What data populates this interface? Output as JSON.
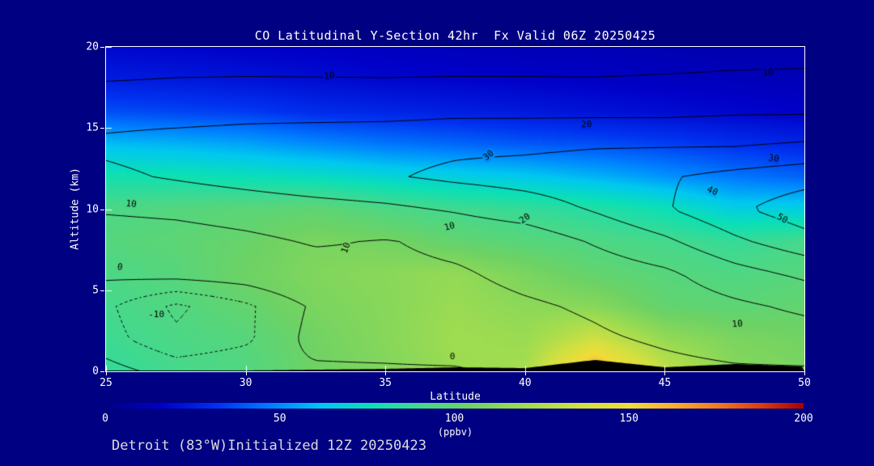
{
  "title": "CO Latitudinal Y-Section 42hr  Fx Valid 06Z 20250425",
  "footer": "Detroit (83°W)Initialized 12Z 20250423",
  "colors": {
    "background": "#000082",
    "axis": "#FFFFFF",
    "contour": "#000000",
    "title_text": "#FFFFFF",
    "footer_text": "#DCDCDC",
    "terrain": "#000000"
  },
  "chart_data": {
    "type": "heatmap",
    "title": "CO Latitudinal Y-Section 42hr  Fx Valid 06Z 20250425",
    "xlabel": "Latitude",
    "ylabel": "Altitude (km)",
    "xlim": [
      25,
      50
    ],
    "ylim": [
      0,
      20
    ],
    "x_ticks": [
      25,
      30,
      35,
      40,
      45,
      50
    ],
    "y_ticks": [
      0,
      5,
      10,
      15,
      20
    ],
    "grid_lats": [
      25,
      27.5,
      30,
      32.5,
      35,
      37.5,
      40,
      42.5,
      45,
      47.5,
      50
    ],
    "grid_alts": [
      0,
      2,
      4,
      6,
      8,
      10,
      12,
      14,
      16,
      18,
      20
    ],
    "fill_field": {
      "name": "CO",
      "units": "ppbv",
      "values": [
        [
          85,
          90,
          94,
          104,
          110,
          118,
          122,
          168,
          132,
          112,
          108
        ],
        [
          88,
          92,
          96,
          105,
          112,
          120,
          118,
          135,
          116,
          108,
          105
        ],
        [
          90,
          94,
          100,
          108,
          112,
          118,
          114,
          112,
          100,
          98,
          100
        ],
        [
          92,
          96,
          104,
          110,
          113,
          116,
          108,
          100,
          96,
          93,
          96
        ],
        [
          95,
          98,
          102,
          108,
          106,
          100,
          96,
          93,
          90,
          86,
          90
        ],
        [
          92,
          95,
          97,
          99,
          93,
          89,
          86,
          82,
          76,
          66,
          66
        ],
        [
          78,
          77,
          75,
          73,
          69,
          66,
          63,
          58,
          52,
          46,
          42
        ],
        [
          60,
          58,
          55,
          50,
          46,
          43,
          40,
          38,
          35,
          31,
          28
        ],
        [
          38,
          36,
          34,
          30,
          28,
          26,
          24,
          22,
          20,
          18,
          16
        ],
        [
          25,
          24,
          22,
          20,
          18,
          17,
          16,
          15,
          14,
          13,
          12
        ],
        [
          18,
          17,
          16,
          15,
          14,
          13,
          12,
          12,
          11,
          10,
          10
        ]
      ]
    },
    "contour_field": {
      "levels": [
        -10,
        -5,
        0,
        10,
        20,
        30,
        40,
        50
      ],
      "negative_style": "dotted",
      "values": [
        [
          2,
          -2,
          -1,
          -1,
          -1,
          -1,
          2,
          6,
          8,
          9,
          9
        ],
        [
          -3,
          -9,
          -6,
          2,
          3,
          5,
          7,
          9,
          11,
          13,
          15
        ],
        [
          -4,
          -11,
          -6,
          1,
          4,
          7,
          9,
          11,
          14,
          18,
          22
        ],
        [
          1,
          2,
          3,
          6,
          8,
          9,
          12,
          14,
          18,
          26,
          32
        ],
        [
          5,
          6,
          8,
          10.8,
          9.5,
          12,
          14,
          21,
          28,
          38,
          46
        ],
        [
          11,
          12,
          14,
          16,
          18,
          21,
          25,
          31,
          39,
          48,
          56
        ],
        [
          18,
          21,
          24,
          27,
          29,
          32,
          34,
          36,
          39,
          43,
          46
        ],
        [
          22,
          24,
          25,
          26,
          27,
          28,
          28,
          29,
          29,
          29,
          31
        ],
        [
          16,
          16,
          17,
          17,
          17,
          18,
          18,
          18,
          18,
          19,
          19
        ],
        [
          9.6,
          10.2,
          10.4,
          10.3,
          10.2,
          10.4,
          10.3,
          10.2,
          10.6,
          10.8,
          11
        ],
        [
          5,
          6,
          6,
          6,
          6,
          6,
          7,
          7,
          7,
          8,
          8
        ]
      ]
    },
    "terrain_km": [
      0.05,
      0.05,
      0.05,
      0.1,
      0.15,
      0.25,
      0.2,
      0.7,
      0.25,
      0.45,
      0.3
    ],
    "contour_labels": [
      {
        "lat": 33.0,
        "alt": 18.2,
        "text": "10",
        "rot": -6
      },
      {
        "lat": 48.7,
        "alt": 18.4,
        "text": "10",
        "rot": -4
      },
      {
        "lat": 42.2,
        "alt": 15.2,
        "text": "20",
        "rot": -3
      },
      {
        "lat": 38.7,
        "alt": 13.3,
        "text": "30",
        "rot": -40
      },
      {
        "lat": 48.9,
        "alt": 13.1,
        "text": "30",
        "rot": 8
      },
      {
        "lat": 25.9,
        "alt": 10.3,
        "text": "10",
        "rot": 6
      },
      {
        "lat": 33.6,
        "alt": 7.6,
        "text": "10",
        "rot": -70
      },
      {
        "lat": 37.3,
        "alt": 8.9,
        "text": "10",
        "rot": -15
      },
      {
        "lat": 40.0,
        "alt": 9.4,
        "text": "20",
        "rot": -35
      },
      {
        "lat": 46.7,
        "alt": 11.1,
        "text": "40",
        "rot": 25
      },
      {
        "lat": 49.2,
        "alt": 9.4,
        "text": "50",
        "rot": 30
      },
      {
        "lat": 25.5,
        "alt": 6.4,
        "text": "0",
        "rot": 8
      },
      {
        "lat": 26.8,
        "alt": 3.5,
        "text": "-10",
        "rot": 0
      },
      {
        "lat": 37.4,
        "alt": 0.9,
        "text": "0",
        "rot": 0
      },
      {
        "lat": 47.6,
        "alt": 2.9,
        "text": "10",
        "rot": -5
      }
    ],
    "colorbar": {
      "min": 0,
      "max": 200,
      "ticks": [
        0,
        50,
        100,
        150,
        200
      ],
      "label": "(ppbv)"
    },
    "colormap": [
      [
        0.0,
        "#000082"
      ],
      [
        0.08,
        "#0000C8"
      ],
      [
        0.16,
        "#0032F0"
      ],
      [
        0.24,
        "#0082FF"
      ],
      [
        0.31,
        "#00C8F0"
      ],
      [
        0.38,
        "#0CE0B4"
      ],
      [
        0.45,
        "#46D88C"
      ],
      [
        0.52,
        "#6ED264"
      ],
      [
        0.6,
        "#A0DC50"
      ],
      [
        0.68,
        "#D2E040"
      ],
      [
        0.75,
        "#F0DC38"
      ],
      [
        0.82,
        "#F8AC2C"
      ],
      [
        0.88,
        "#F07820"
      ],
      [
        0.94,
        "#DC3C10"
      ],
      [
        1.0,
        "#AA0000"
      ]
    ]
  }
}
